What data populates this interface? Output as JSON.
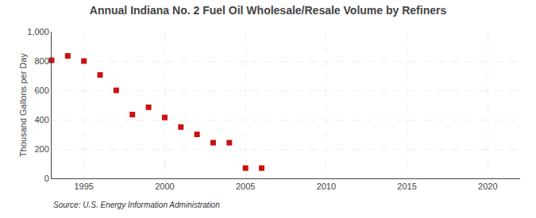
{
  "chart_data": {
    "type": "scatter",
    "title": "Annual Indiana No. 2 Fuel Oil Wholesale/Resale Volume by Refiners",
    "ylabel": "Thousand Gallons per Day",
    "source": "Source: U.S. Energy Information Administration",
    "x": [
      1993,
      1994,
      1995,
      1996,
      1997,
      1998,
      1999,
      2000,
      2001,
      2002,
      2003,
      2004,
      2005,
      2006
    ],
    "values": [
      805,
      835,
      800,
      705,
      600,
      435,
      485,
      415,
      350,
      300,
      243,
      243,
      70,
      70
    ],
    "color": "#cc1111",
    "marker": "square",
    "xlim": [
      1993,
      2022
    ],
    "xticks": [
      1995,
      2000,
      2005,
      2010,
      2015,
      2020
    ],
    "ylim": [
      0,
      1000
    ],
    "yticks": [
      0,
      200,
      400,
      600,
      800,
      {
        "value": 1000,
        "label": "1,000"
      }
    ],
    "grid": true
  }
}
